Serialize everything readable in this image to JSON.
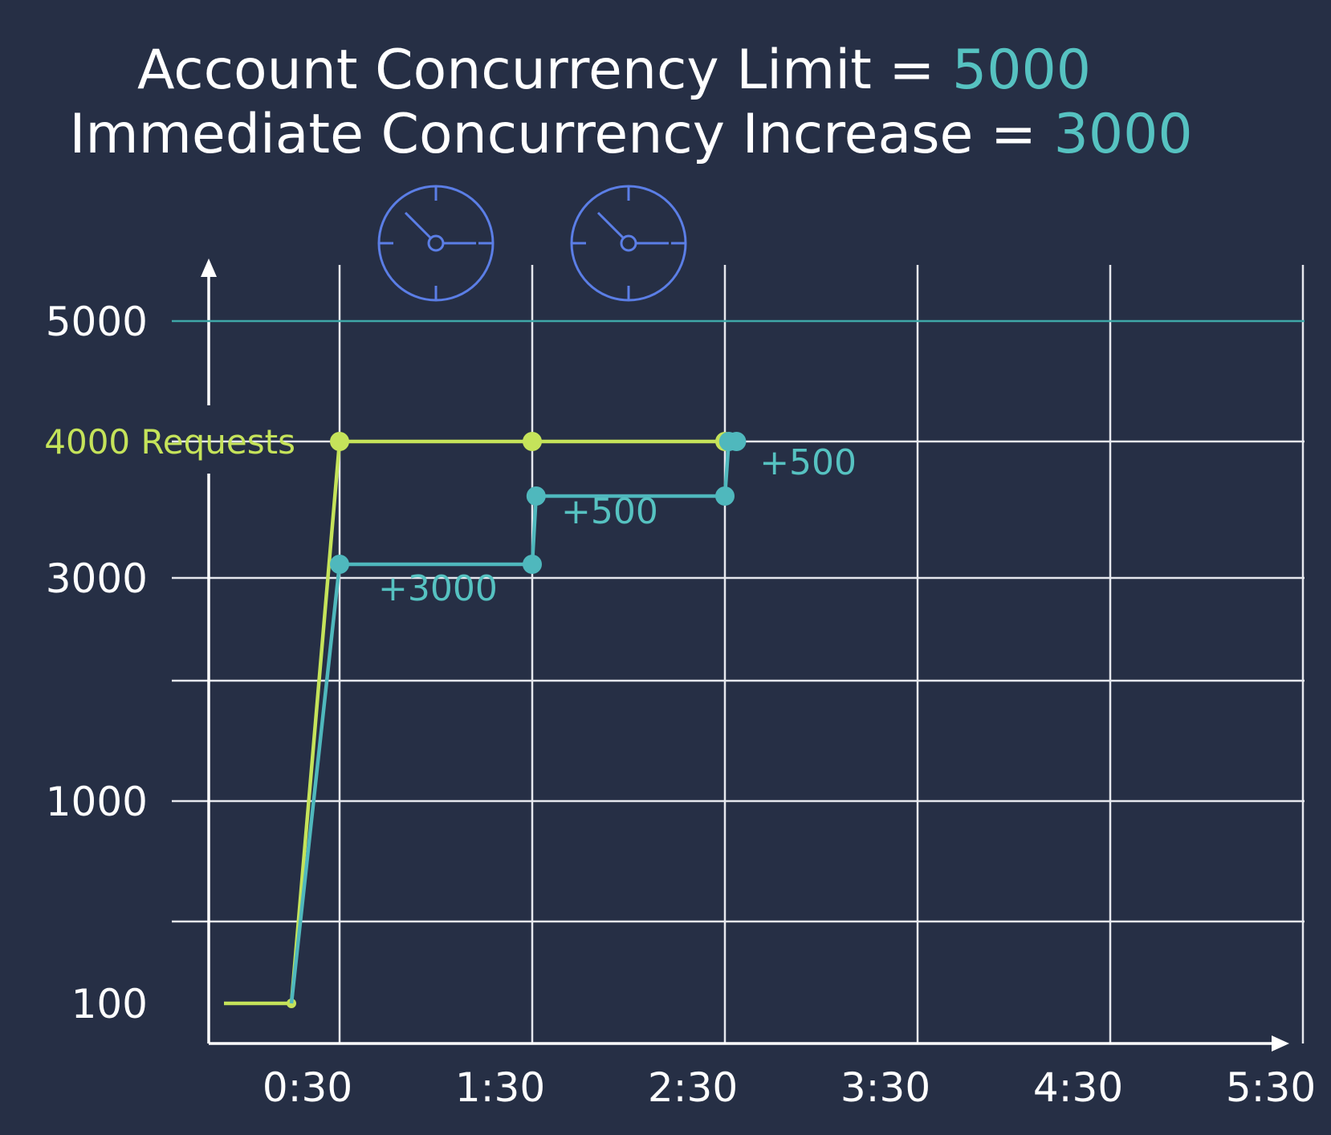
{
  "title": {
    "line1_label": "Account Concurrency Limit = ",
    "line1_value": "5000",
    "line2_label": "Immediate Concurrency Increase = ",
    "line2_value": "3000"
  },
  "colors": {
    "background": "#262f45",
    "text": "#ffffff",
    "grid": "#e6e8ee",
    "accent_teal": "#56c2c1",
    "requests_line": "#c5e35a",
    "concurrency_line": "#4fb8bd",
    "limit_line": "#3fa8a8",
    "clock": "#5b7ee6"
  },
  "icons": [
    "clock-icon",
    "clock-icon"
  ],
  "chart_data": {
    "type": "line",
    "x_ticks": [
      0.5,
      1.5,
      2.5,
      3.5,
      4.5,
      5.5
    ],
    "x_tick_labels": [
      "0:30",
      "1:30",
      "2:30",
      "3:30",
      "4:30",
      "5:30"
    ],
    "y_tick_labels": [
      {
        "value": 5000,
        "label": "5000"
      },
      {
        "value": 3000,
        "label": "3000"
      },
      {
        "value": 1000,
        "label": "1000"
      },
      {
        "value": 100,
        "label": "100"
      }
    ],
    "hlines": [
      4000
    ],
    "limit": {
      "value": 5000
    },
    "series": [
      {
        "label": "4000 Requests",
        "color": "#c5e35a",
        "points": [
          [
            -0.1,
            100
          ],
          [
            0.25,
            100
          ],
          [
            0.5,
            4000
          ],
          [
            1.5,
            4000
          ],
          [
            2.5,
            4000
          ],
          [
            2.56,
            4000
          ]
        ]
      },
      {
        "color": "#4fb8bd",
        "points": [
          [
            0.25,
            100
          ],
          [
            0.5,
            3100
          ],
          [
            1.5,
            3100
          ],
          [
            1.52,
            3600
          ],
          [
            2.5,
            3600
          ],
          [
            2.52,
            4000
          ],
          [
            2.56,
            4000
          ]
        ]
      }
    ],
    "annotations": [
      {
        "text": "+3000",
        "x": 0.7,
        "y": 2800
      },
      {
        "text": "+500",
        "x": 1.65,
        "y": 3400
      },
      {
        "text": "+500",
        "x": 2.68,
        "y": 3760
      }
    ]
  }
}
